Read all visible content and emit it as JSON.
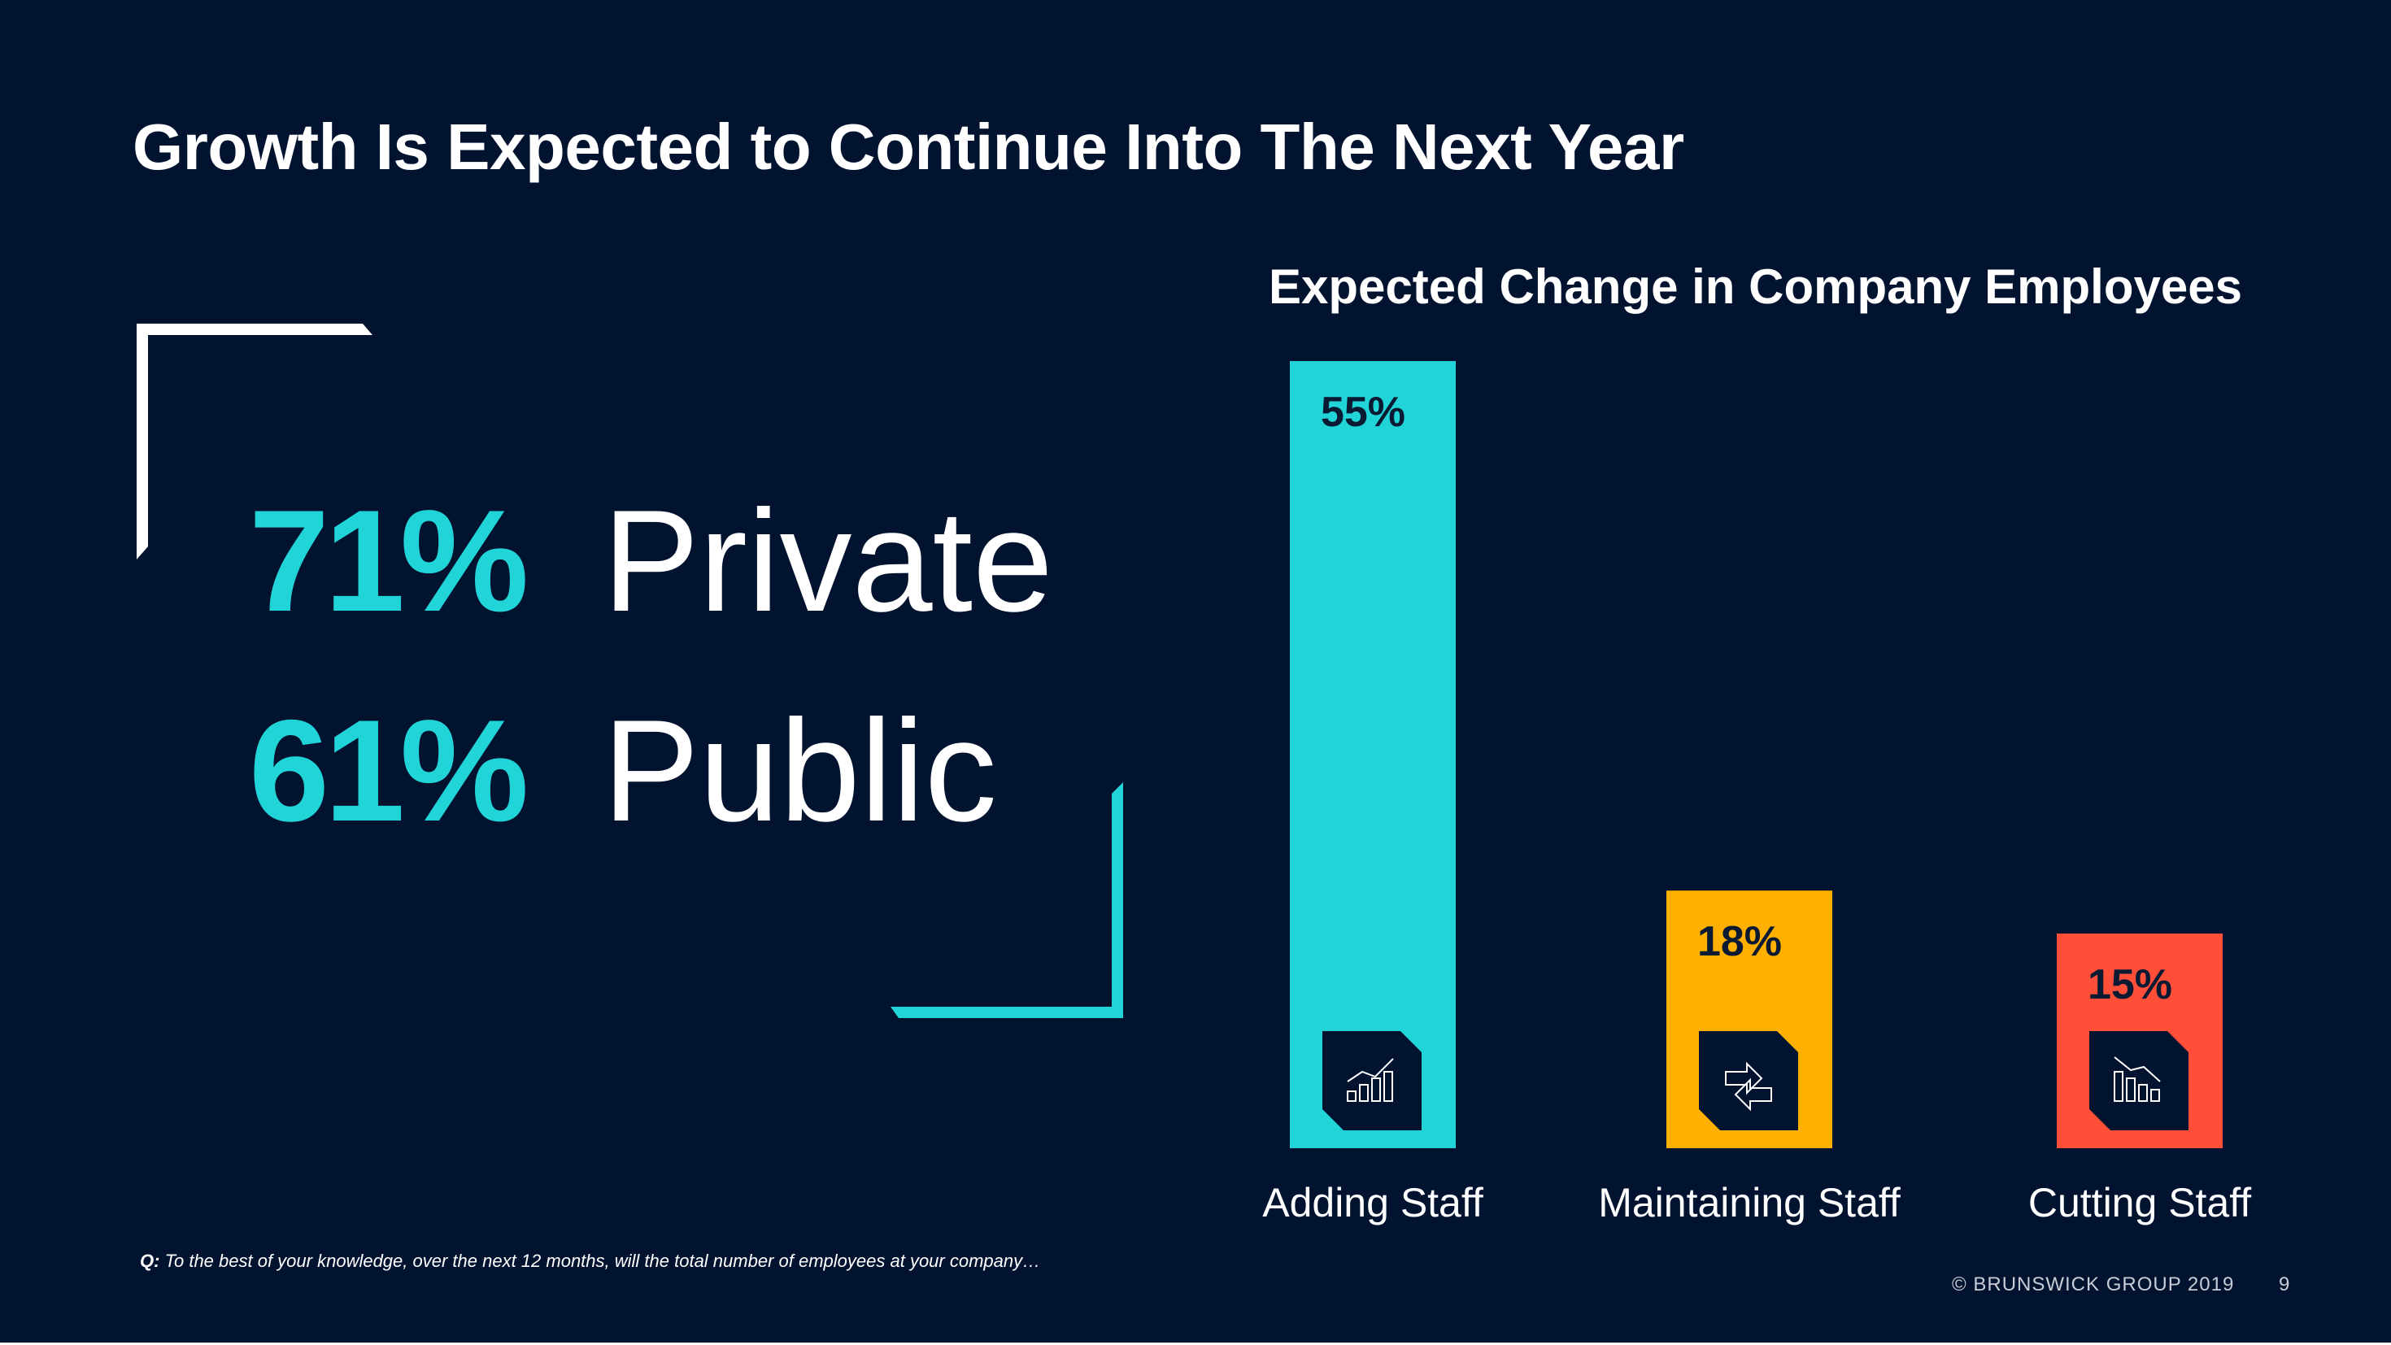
{
  "slide": {
    "title": "Growth Is Expected to Continue Into The Next Year",
    "background_color": "#021330"
  },
  "stats": [
    {
      "percent": "71%",
      "label": "Private",
      "color": "#21d4d8"
    },
    {
      "percent": "61%",
      "label": "Public",
      "color": "#21d4d8"
    }
  ],
  "chart_data": {
    "type": "bar",
    "title": "Expected Change in Company Employees",
    "categories": [
      "Adding Staff",
      "Maintaining Staff",
      "Cutting Staff"
    ],
    "values": [
      55,
      18,
      15
    ],
    "value_labels": [
      "55%",
      "18%",
      "15%"
    ],
    "colors": [
      "#21d4d8",
      "#ffb000",
      "#ff4f38"
    ],
    "icons": [
      "growth-chart-icon",
      "exchange-arrows-icon",
      "decline-chart-icon"
    ],
    "xlabel": "",
    "ylabel": "",
    "ylim": [
      0,
      55
    ],
    "grid": false,
    "legend": "none"
  },
  "footer": {
    "question_prefix": "Q:",
    "question_text": " To the best of your knowledge, over the next 12 months, will the total number of employees at your company…",
    "copyright": "© BRUNSWICK GROUP 2019",
    "page_number": "9"
  }
}
